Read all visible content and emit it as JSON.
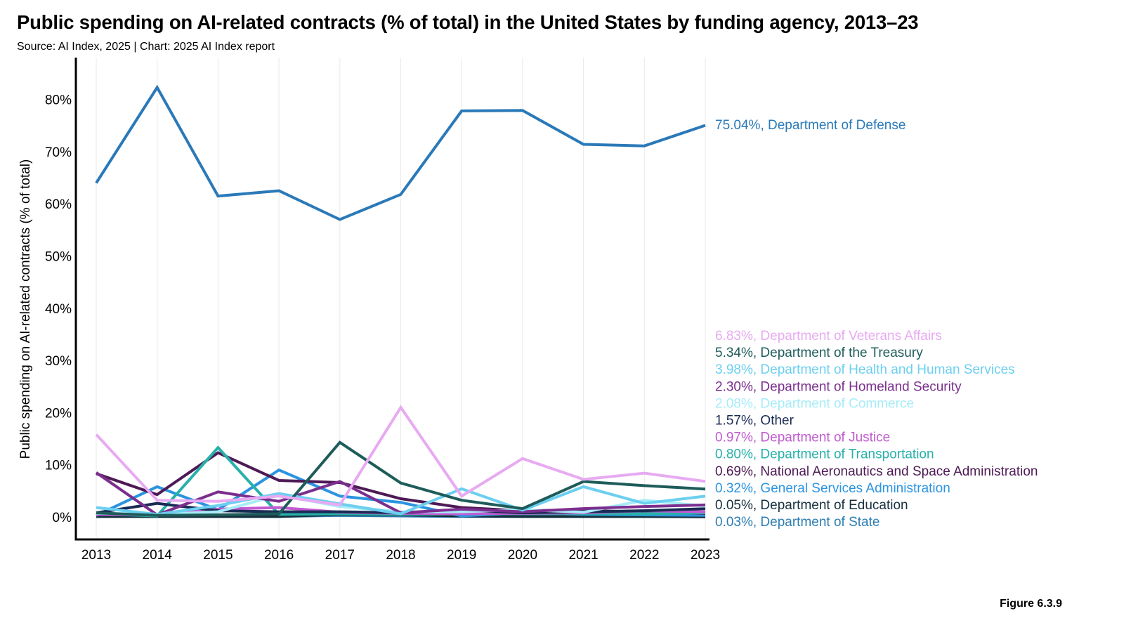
{
  "title": "Public spending on AI-related contracts (% of total) in the United States by funding agency, 2013–23",
  "subtitle": "Source: AI Index, 2025 | Chart: 2025 AI Index report",
  "figure_label": "Figure 6.3.9",
  "chart_data": {
    "type": "line",
    "title": "Public spending on AI-related contracts (% of total) in the United States by funding agency, 2013–23",
    "xlabel": "",
    "ylabel": "Public spending on AI-related contracts (% of total)",
    "x": [
      "2013",
      "2014",
      "2015",
      "2016",
      "2017",
      "2018",
      "2019",
      "2020",
      "2021",
      "2022",
      "2023"
    ],
    "ylim": [
      -5,
      87
    ],
    "yticks": [
      0,
      10,
      20,
      30,
      40,
      50,
      60,
      70,
      80
    ],
    "ytick_labels": [
      "0%",
      "10%",
      "20%",
      "30%",
      "40%",
      "50%",
      "60%",
      "70%",
      "80%"
    ],
    "grid": "vertical",
    "legend": "end-of-line labels",
    "series": [
      {
        "name": "Department of Defense",
        "end_label": "75.04%, Department of Defense",
        "color": "#2a79b8",
        "values": [
          64.0,
          82.3,
          61.5,
          62.5,
          57.0,
          61.8,
          77.8,
          77.9,
          71.4,
          71.1,
          75.04
        ]
      },
      {
        "name": "Department of Veterans Affairs",
        "end_label": "6.83%, Department of Veterans Affairs",
        "color": "#e8aaf2",
        "values": [
          15.8,
          3.2,
          3.0,
          4.0,
          2.3,
          21.0,
          4.0,
          11.2,
          7.2,
          8.4,
          6.83
        ]
      },
      {
        "name": "Department of the Treasury",
        "end_label": "5.34%, Department of the Treasury",
        "color": "#1e5c5a",
        "values": [
          0.8,
          0.3,
          0.4,
          0.6,
          14.3,
          6.5,
          3.2,
          1.6,
          6.8,
          6.0,
          5.34
        ]
      },
      {
        "name": "Department of Health and Human Services",
        "end_label": "3.98%, Department of Health and Human Services",
        "color": "#6ccff0",
        "values": [
          1.8,
          0.5,
          2.2,
          4.5,
          2.5,
          0.6,
          5.4,
          1.3,
          5.8,
          2.6,
          3.98
        ]
      },
      {
        "name": "Department of Homeland Security",
        "end_label": "2.30%, Department of Homeland Security",
        "color": "#7b2e8e",
        "values": [
          8.5,
          0.4,
          4.8,
          3.0,
          6.8,
          0.8,
          1.5,
          1.0,
          1.6,
          2.0,
          2.3
        ]
      },
      {
        "name": "Department of Commerce",
        "end_label": "2.08%, Department of Commerce",
        "color": "#a6ecf8",
        "values": [
          0.7,
          0.5,
          1.0,
          4.2,
          2.0,
          1.0,
          1.0,
          1.4,
          0.9,
          3.2,
          2.08
        ]
      },
      {
        "name": "Other",
        "end_label": "1.57%, Other",
        "color": "#1a2c55",
        "values": [
          0.8,
          2.6,
          1.2,
          1.0,
          1.0,
          0.8,
          1.3,
          0.8,
          1.0,
          1.2,
          1.57
        ]
      },
      {
        "name": "Department of Justice",
        "end_label": "0.97%, Department of Justice",
        "color": "#c25bd1",
        "values": [
          0.5,
          0.4,
          1.5,
          1.8,
          0.9,
          0.7,
          0.6,
          0.7,
          0.8,
          1.2,
          0.97
        ]
      },
      {
        "name": "Department of Transportation",
        "end_label": "0.80%, Department of Transportation",
        "color": "#27b1aa",
        "values": [
          0.6,
          0.2,
          13.3,
          0.5,
          0.6,
          0.5,
          0.6,
          0.6,
          0.6,
          0.6,
          0.8
        ]
      },
      {
        "name": "National Aeronautics and Space Administration",
        "end_label": "0.69%, National Aeronautics and Space Administration",
        "color": "#4e1a55",
        "values": [
          8.3,
          4.3,
          12.3,
          7.0,
          6.6,
          3.5,
          1.8,
          1.2,
          1.3,
          0.9,
          0.69
        ]
      },
      {
        "name": "General Services Administration",
        "end_label": "0.32%, General Services Administration",
        "color": "#2b94e0",
        "values": [
          0.3,
          5.8,
          1.4,
          9.0,
          4.0,
          2.8,
          0.2,
          0.8,
          0.5,
          0.4,
          0.32
        ]
      },
      {
        "name": "Department of Education",
        "end_label": "0.05%, Department of Education",
        "color": "#17303d",
        "values": [
          0.1,
          0.1,
          0.1,
          0.1,
          0.5,
          0.4,
          0.2,
          0.1,
          0.1,
          0.1,
          0.05
        ]
      },
      {
        "name": "Department of State",
        "end_label": "0.03%, Department of State",
        "color": "#2d7eb3",
        "values": [
          0.1,
          0.1,
          0.1,
          0.1,
          0.3,
          0.2,
          0.1,
          0.1,
          0.1,
          0.1,
          0.03
        ]
      }
    ]
  }
}
